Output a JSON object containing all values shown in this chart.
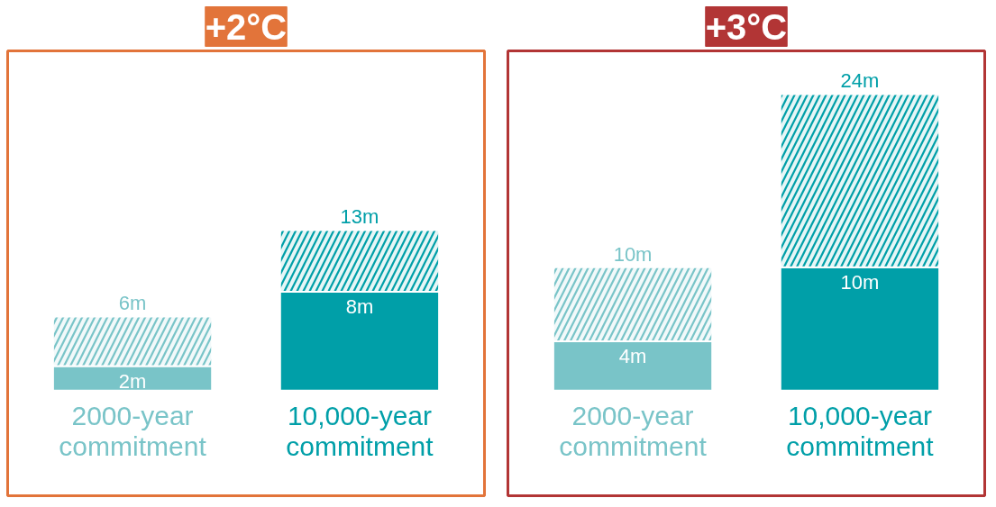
{
  "chart_data": [
    {
      "type": "bar",
      "title": "+2°C",
      "stacked": true,
      "categories": [
        "2000-year commitment",
        "10,000-year commitment"
      ],
      "series": [
        {
          "values": [
            2,
            8
          ],
          "colors": [
            "#79c4c8",
            "#009fa8"
          ],
          "value_labels": [
            "2m",
            "8m"
          ]
        },
        {
          "values": [
            4,
            5
          ],
          "colors": [
            "#79c4c8",
            "#009fa8"
          ]
        }
      ],
      "totals": [
        "6m",
        "13m"
      ]
    },
    {
      "type": "bar",
      "title": "+3°C",
      "stacked": true,
      "categories": [
        "2000-year commitment",
        "10,000-year commitment"
      ],
      "series": [
        {
          "values": [
            4,
            10
          ],
          "colors": [
            "#79c4c8",
            "#009fa8"
          ],
          "value_labels": [
            "4m",
            "10m"
          ]
        },
        {
          "values": [
            6,
            14
          ],
          "colors": [
            "#79c4c8",
            "#009fa8"
          ]
        }
      ],
      "totals": [
        "10m",
        "24m"
      ]
    }
  ]
}
